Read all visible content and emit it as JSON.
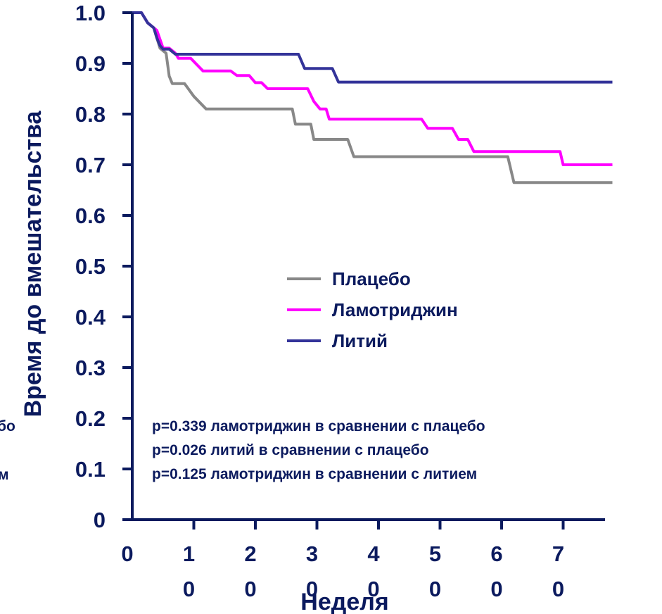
{
  "chart_data": {
    "type": "line",
    "title": "",
    "xlabel": "Неделя",
    "ylabel": "Время до вмешательства",
    "xlim": [
      0,
      78
    ],
    "ylim": [
      0,
      1.0
    ],
    "x_ticks": [
      {
        "value": 0,
        "lines": [
          "0"
        ]
      },
      {
        "value": 10,
        "lines": [
          "1",
          "0"
        ]
      },
      {
        "value": 20,
        "lines": [
          "2",
          "0"
        ]
      },
      {
        "value": 30,
        "lines": [
          "3",
          "0"
        ]
      },
      {
        "value": 40,
        "lines": [
          "4",
          "0"
        ]
      },
      {
        "value": 50,
        "lines": [
          "5",
          "0"
        ]
      },
      {
        "value": 60,
        "lines": [
          "6",
          "0"
        ]
      },
      {
        "value": 70,
        "lines": [
          "7",
          "0"
        ]
      }
    ],
    "y_ticks": [
      "0",
      "0.1",
      "0.2",
      "0.3",
      "0.4",
      "0.5",
      "0.6",
      "0.7",
      "0.8",
      "0.9",
      "1.0"
    ],
    "grid": false,
    "legend_position": "center-right",
    "series": [
      {
        "name": "Плацебо",
        "color": "#888888",
        "points": [
          [
            0,
            1.0
          ],
          [
            1.5,
            1.0
          ],
          [
            2.5,
            0.98
          ],
          [
            3.5,
            0.97
          ],
          [
            4,
            0.95
          ],
          [
            4.5,
            0.93
          ],
          [
            5.5,
            0.92
          ],
          [
            6,
            0.875
          ],
          [
            6.5,
            0.86
          ],
          [
            8.5,
            0.86
          ],
          [
            10,
            0.835
          ],
          [
            12,
            0.81
          ],
          [
            26,
            0.81
          ],
          [
            26.5,
            0.78
          ],
          [
            29,
            0.78
          ],
          [
            29.5,
            0.75
          ],
          [
            35,
            0.75
          ],
          [
            36,
            0.716
          ],
          [
            61,
            0.716
          ],
          [
            62,
            0.665
          ],
          [
            78,
            0.665
          ]
        ]
      },
      {
        "name": "Ламотриджин",
        "color": "#ff00ff",
        "points": [
          [
            0,
            1.0
          ],
          [
            1.5,
            1.0
          ],
          [
            2.5,
            0.98
          ],
          [
            4,
            0.965
          ],
          [
            5,
            0.93
          ],
          [
            6,
            0.93
          ],
          [
            7,
            0.92
          ],
          [
            7.5,
            0.91
          ],
          [
            9.5,
            0.91
          ],
          [
            11.5,
            0.885
          ],
          [
            16,
            0.885
          ],
          [
            17,
            0.876
          ],
          [
            19,
            0.876
          ],
          [
            20,
            0.862
          ],
          [
            21,
            0.862
          ],
          [
            22,
            0.85
          ],
          [
            28.5,
            0.85
          ],
          [
            29.5,
            0.825
          ],
          [
            30.5,
            0.81
          ],
          [
            31.5,
            0.81
          ],
          [
            32,
            0.79
          ],
          [
            47,
            0.79
          ],
          [
            48,
            0.772
          ],
          [
            52,
            0.772
          ],
          [
            53,
            0.75
          ],
          [
            54.5,
            0.75
          ],
          [
            55.5,
            0.726
          ],
          [
            61,
            0.726
          ],
          [
            69.5,
            0.726
          ],
          [
            70,
            0.7
          ],
          [
            78,
            0.7
          ]
        ]
      },
      {
        "name": "Литий",
        "color": "#333399",
        "points": [
          [
            0,
            1.0
          ],
          [
            1.5,
            1.0
          ],
          [
            2.5,
            0.98
          ],
          [
            3.5,
            0.97
          ],
          [
            4,
            0.95
          ],
          [
            4.5,
            0.935
          ],
          [
            5,
            0.928
          ],
          [
            6,
            0.928
          ],
          [
            7,
            0.918
          ],
          [
            27,
            0.918
          ],
          [
            28,
            0.89
          ],
          [
            32.5,
            0.89
          ],
          [
            33.5,
            0.863
          ],
          [
            78,
            0.863
          ]
        ]
      }
    ],
    "annotations": [
      "p=0.339 ламотриджин в сравнении с плацебо",
      "p=0.026 литий в сравнении с плацебо",
      "p=0.125 ламотриджин в сравнении с литием"
    ],
    "edge_text": [
      "бо",
      "м"
    ]
  }
}
